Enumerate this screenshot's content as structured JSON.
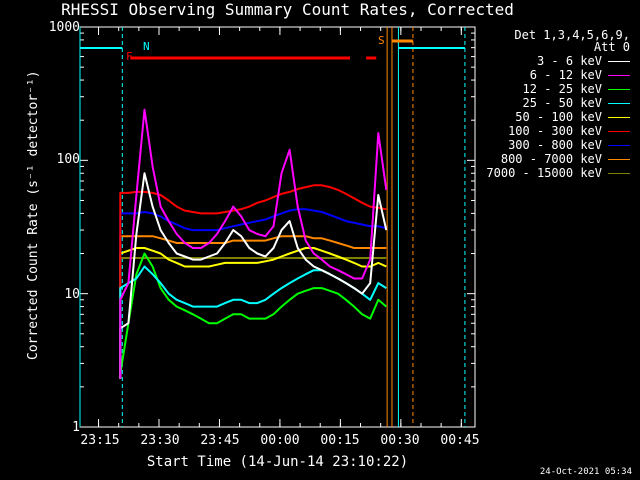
{
  "chart_data": {
    "type": "line",
    "title": "RHESSI Observing Summary Count Rates, Corrected",
    "ylabel": "Corrected Count Rate (s⁻¹ detector⁻¹)",
    "xlabel": "Start Time (14-Jun-14 23:10:22)",
    "y_scale": "log",
    "ylim": [
      1,
      1000
    ],
    "y_ticks": [
      "1",
      "10",
      "100",
      "1000"
    ],
    "x_unit": "minutes after 23:10:22",
    "xlim": [
      0,
      98
    ],
    "x_ticks": [
      {
        "label": "23:15",
        "minute": 4.6
      },
      {
        "label": "23:30",
        "minute": 19.6
      },
      {
        "label": "23:45",
        "minute": 34.6
      },
      {
        "label": "00:00",
        "minute": 49.6
      },
      {
        "label": "00:15",
        "minute": 64.6
      },
      {
        "label": "00:30",
        "minute": 79.6
      },
      {
        "label": "00:45",
        "minute": 94.6
      }
    ],
    "grid": false,
    "legend_position": "right",
    "legend_header": [
      "Det 1,3,4,5,6,9,",
      "Att 0"
    ],
    "x": [
      10,
      12,
      14,
      16,
      18,
      20,
      22,
      24,
      26,
      28,
      30,
      32,
      34,
      36,
      38,
      40,
      42,
      44,
      46,
      48,
      50,
      52,
      54,
      56,
      58,
      60,
      62,
      64,
      66,
      68,
      70,
      72,
      74,
      76
    ],
    "series": [
      {
        "name": "3 - 6 keV",
        "color": "#ffffff",
        "values": [
          5.5,
          6,
          28,
          80,
          45,
          30,
          24,
          20,
          19,
          18,
          18,
          19,
          20,
          24,
          30,
          27,
          22,
          20,
          19,
          22,
          30,
          35,
          22,
          18,
          16,
          15,
          14,
          13,
          12,
          11,
          10,
          12,
          55,
          30
        ]
      },
      {
        "name": "6 - 12 keV",
        "color": "#ff00ff",
        "values": [
          9,
          12,
          55,
          240,
          90,
          45,
          35,
          28,
          24,
          22,
          22,
          24,
          28,
          35,
          45,
          38,
          30,
          28,
          27,
          32,
          80,
          120,
          45,
          25,
          20,
          18,
          16,
          15,
          14,
          13,
          13,
          18,
          160,
          60
        ]
      },
      {
        "name": "12 - 25 keV",
        "color": "#00ff00",
        "values": [
          2.5,
          6,
          14,
          20,
          16,
          11,
          9,
          8,
          7.5,
          7,
          6.5,
          6,
          6,
          6.5,
          7,
          7,
          6.5,
          6.5,
          6.5,
          7,
          8,
          9,
          10,
          10.5,
          11,
          11,
          10.5,
          10,
          9,
          8,
          7,
          6.5,
          9,
          8
        ]
      },
      {
        "name": "25 - 50 keV",
        "color": "#00ffff",
        "values": [
          11,
          12,
          13,
          16,
          14,
          12,
          10,
          9,
          8.5,
          8,
          8,
          8,
          8,
          8.5,
          9,
          9,
          8.5,
          8.5,
          9,
          10,
          11,
          12,
          13,
          14,
          15,
          15,
          14,
          13,
          12,
          11,
          10,
          9,
          12,
          11
        ]
      },
      {
        "name": "50 - 100 keV",
        "color": "#ffff00",
        "values": [
          20,
          21,
          22,
          22,
          21,
          20,
          18,
          17,
          16,
          16,
          16,
          16,
          16.5,
          17,
          17,
          17,
          17,
          17,
          17.5,
          18,
          19,
          20,
          21,
          22,
          22,
          21,
          20,
          19,
          18,
          17,
          16,
          16,
          17,
          16
        ]
      },
      {
        "name": "100 - 300 keV",
        "color": "#ff0000",
        "values": [
          57,
          57,
          58,
          58,
          57,
          55,
          50,
          45,
          42,
          41,
          40,
          40,
          40,
          41,
          42,
          43,
          45,
          48,
          50,
          53,
          56,
          58,
          61,
          63,
          65,
          65,
          63,
          60,
          56,
          52,
          48,
          45,
          44,
          43
        ]
      },
      {
        "name": "300 - 800 keV",
        "color": "#0000ff",
        "values": [
          40,
          40,
          40,
          41,
          40,
          38,
          35,
          33,
          31,
          30,
          30,
          30,
          30,
          31,
          32,
          33,
          34,
          35,
          36,
          38,
          40,
          42,
          43,
          43,
          42,
          41,
          39,
          37,
          35,
          34,
          33,
          32,
          32,
          31
        ]
      },
      {
        "name": "800 - 7000 keV",
        "color": "#ff8800",
        "values": [
          27,
          27,
          27,
          27,
          27,
          26,
          25,
          24,
          24,
          24,
          24,
          24,
          24,
          24,
          25,
          25,
          25,
          25,
          25,
          26,
          27,
          27,
          27,
          27,
          26,
          26,
          25,
          24,
          23,
          22,
          22,
          22,
          22,
          22
        ]
      },
      {
        "name": "7000 - 15000 keV",
        "color": "#808000",
        "values": [
          18.5,
          18.5,
          18.5,
          18.5,
          18.5,
          18.5,
          18.5,
          18.5,
          18.5,
          18.5,
          18.5,
          18.5,
          18.5,
          18.5,
          18.5,
          18.5,
          18.5,
          18.5,
          18.5,
          18.5,
          18.5,
          18.5,
          18.5,
          18.5,
          18.5,
          18.5,
          18.5,
          18.5,
          18.5,
          18.5,
          18.5,
          18.5,
          18.5,
          18.5
        ]
      }
    ],
    "markers": [
      {
        "label": "N",
        "color": "#00ffff"
      },
      {
        "label": "F",
        "color": "#ff0000"
      },
      {
        "label": "S",
        "color": "#ff8800"
      }
    ],
    "footer_date": "24-Oct-2021 05:34"
  }
}
